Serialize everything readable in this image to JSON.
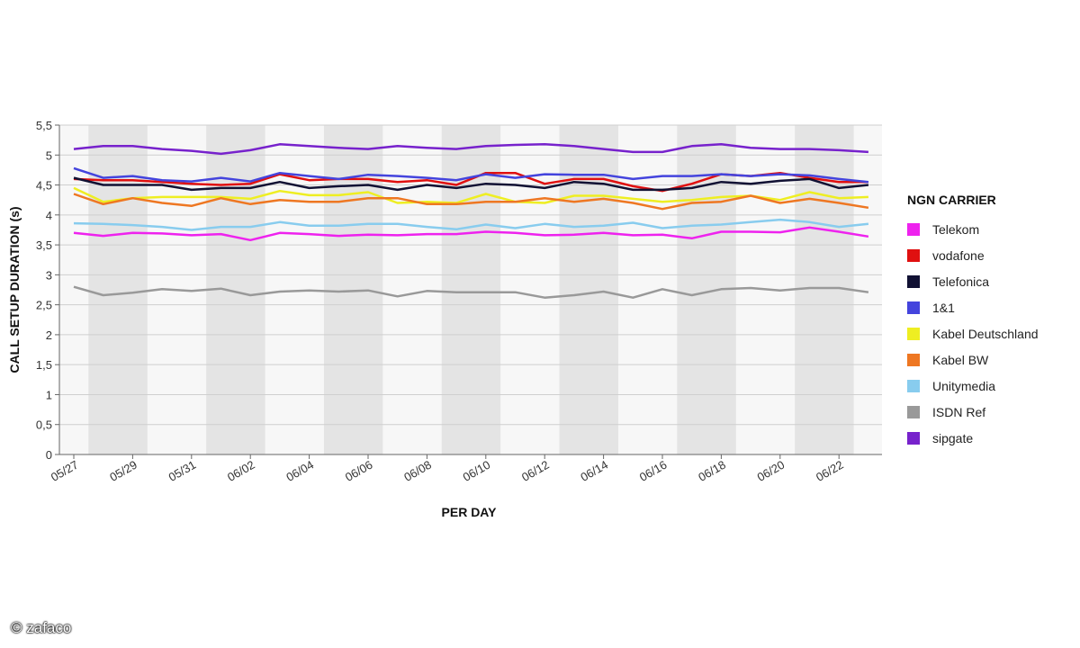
{
  "chart_data": {
    "type": "line",
    "title": "",
    "xlabel": "PER DAY",
    "ylabel": "CALL SETUP DURATION (s)",
    "ylim": [
      0,
      5.5
    ],
    "y_ticks": [
      "0",
      "0,5",
      "1",
      "1,5",
      "2",
      "2,5",
      "3",
      "3,5",
      "4",
      "4,5",
      "5",
      "5,5"
    ],
    "x_tick_labels": [
      "05/27",
      "05/29",
      "05/31",
      "06/02",
      "06/04",
      "06/06",
      "06/08",
      "06/10",
      "06/12",
      "06/14",
      "06/16",
      "06/18",
      "06/20",
      "06/22"
    ],
    "x": [
      "05/27",
      "05/28",
      "05/29",
      "05/30",
      "05/31",
      "06/01",
      "06/02",
      "06/03",
      "06/04",
      "06/05",
      "06/06",
      "06/07",
      "06/08",
      "06/09",
      "06/10",
      "06/11",
      "06/12",
      "06/13",
      "06/14",
      "06/15",
      "06/16",
      "06/17",
      "06/18",
      "06/19",
      "06/20",
      "06/21",
      "06/22",
      "06/23"
    ],
    "grid": true,
    "legend_title": "NGN CARRIER",
    "legend_position": "right",
    "series": [
      {
        "name": "Telekom",
        "color": "#ee22ee",
        "values": [
          3.7,
          3.65,
          3.7,
          3.69,
          3.66,
          3.68,
          3.58,
          3.7,
          3.68,
          3.65,
          3.67,
          3.66,
          3.68,
          3.68,
          3.72,
          3.7,
          3.66,
          3.67,
          3.7,
          3.66,
          3.67,
          3.61,
          3.72,
          3.72,
          3.71,
          3.79,
          3.72,
          3.64
        ]
      },
      {
        "name": "vodafone",
        "color": "#e01010",
        "values": [
          4.6,
          4.58,
          4.58,
          4.55,
          4.52,
          4.5,
          4.52,
          4.68,
          4.58,
          4.6,
          4.6,
          4.55,
          4.58,
          4.5,
          4.7,
          4.7,
          4.52,
          4.6,
          4.6,
          4.48,
          4.4,
          4.52,
          4.68,
          4.65,
          4.7,
          4.62,
          4.55,
          4.55
        ]
      },
      {
        "name": "Telefonica",
        "color": "#111133",
        "values": [
          4.62,
          4.5,
          4.5,
          4.5,
          4.42,
          4.45,
          4.45,
          4.55,
          4.45,
          4.48,
          4.5,
          4.42,
          4.5,
          4.45,
          4.52,
          4.5,
          4.45,
          4.55,
          4.52,
          4.42,
          4.42,
          4.45,
          4.55,
          4.52,
          4.57,
          4.6,
          4.45,
          4.5
        ]
      },
      {
        "name": "1&1",
        "color": "#4444dd",
        "values": [
          4.78,
          4.62,
          4.65,
          4.58,
          4.56,
          4.62,
          4.56,
          4.7,
          4.65,
          4.6,
          4.67,
          4.65,
          4.62,
          4.58,
          4.68,
          4.62,
          4.68,
          4.67,
          4.67,
          4.6,
          4.65,
          4.65,
          4.68,
          4.65,
          4.68,
          4.66,
          4.6,
          4.55
        ]
      },
      {
        "name": "Kabel Deutschland",
        "color": "#eeee22",
        "values": [
          4.45,
          4.22,
          4.28,
          4.3,
          4.3,
          4.3,
          4.27,
          4.4,
          4.33,
          4.33,
          4.38,
          4.2,
          4.22,
          4.2,
          4.35,
          4.22,
          4.2,
          4.32,
          4.32,
          4.27,
          4.22,
          4.25,
          4.3,
          4.32,
          4.25,
          4.38,
          4.28,
          4.3
        ]
      },
      {
        "name": "Kabel BW",
        "color": "#ee7722",
        "values": [
          4.35,
          4.18,
          4.28,
          4.2,
          4.15,
          4.28,
          4.18,
          4.25,
          4.22,
          4.22,
          4.28,
          4.28,
          4.18,
          4.18,
          4.22,
          4.22,
          4.28,
          4.22,
          4.27,
          4.2,
          4.1,
          4.2,
          4.22,
          4.32,
          4.2,
          4.27,
          4.2,
          4.12
        ]
      },
      {
        "name": "Unitymedia",
        "color": "#88ccee",
        "values": [
          3.86,
          3.85,
          3.83,
          3.8,
          3.75,
          3.8,
          3.8,
          3.88,
          3.82,
          3.82,
          3.85,
          3.85,
          3.8,
          3.76,
          3.84,
          3.78,
          3.85,
          3.8,
          3.82,
          3.87,
          3.78,
          3.82,
          3.84,
          3.88,
          3.92,
          3.88,
          3.8,
          3.85
        ]
      },
      {
        "name": "ISDN Ref",
        "color": "#999999",
        "values": [
          2.8,
          2.66,
          2.7,
          2.76,
          2.73,
          2.77,
          2.66,
          2.72,
          2.74,
          2.72,
          2.74,
          2.64,
          2.73,
          2.71,
          2.71,
          2.71,
          2.62,
          2.66,
          2.72,
          2.62,
          2.76,
          2.66,
          2.76,
          2.78,
          2.74,
          2.78,
          2.78,
          2.71
        ]
      },
      {
        "name": "sipgate",
        "color": "#7722cc",
        "values": [
          5.1,
          5.15,
          5.15,
          5.1,
          5.07,
          5.02,
          5.08,
          5.18,
          5.15,
          5.12,
          5.1,
          5.15,
          5.12,
          5.1,
          5.15,
          5.17,
          5.18,
          5.15,
          5.1,
          5.05,
          5.05,
          5.15,
          5.18,
          5.12,
          5.1,
          5.1,
          5.08,
          5.05
        ]
      }
    ]
  },
  "watermark": "© zafaco"
}
